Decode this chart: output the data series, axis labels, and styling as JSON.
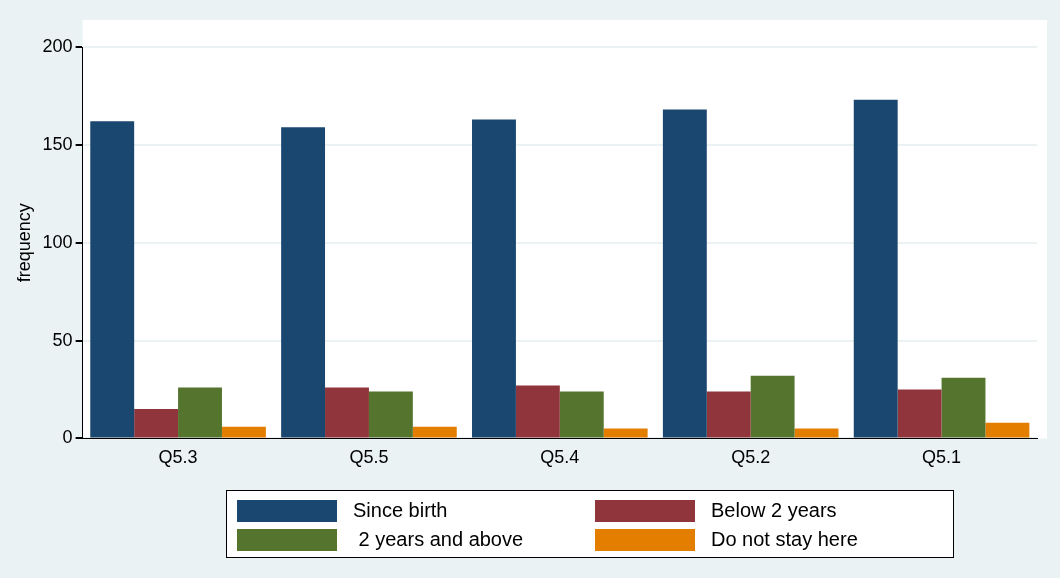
{
  "chart_data": {
    "type": "bar",
    "ylabel": "frequency",
    "categories": [
      "Q5.3",
      "Q5.5",
      "Q5.4",
      "Q5.2",
      "Q5.1"
    ],
    "series": [
      {
        "name": "Since birth",
        "color": "#1a476f",
        "values": [
          162,
          159,
          163,
          168,
          173
        ]
      },
      {
        "name": "Below 2 years",
        "color": "#90353b",
        "values": [
          15,
          26,
          27,
          24,
          25
        ]
      },
      {
        "name": " 2 years and above",
        "color": "#55752f",
        "values": [
          26,
          24,
          24,
          32,
          31
        ]
      },
      {
        "name": "Do not stay here",
        "color": "#e37e00",
        "values": [
          6,
          6,
          5,
          5,
          8
        ]
      }
    ],
    "ylim": [
      0,
      200
    ],
    "yticks": [
      0,
      50,
      100,
      150,
      200
    ],
    "grid": "y",
    "legend": "bottom"
  }
}
